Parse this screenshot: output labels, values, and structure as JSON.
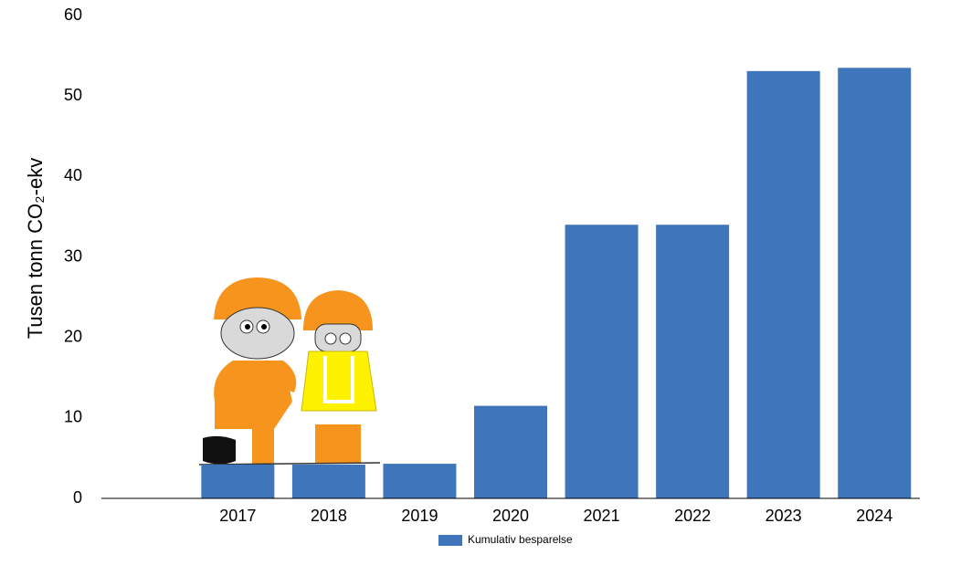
{
  "chart_data": {
    "type": "bar",
    "y_label": "Tusen tonn CO₂-ekv",
    "categories": [
      null,
      "2017",
      "2018",
      "2019",
      "2020",
      "2021",
      "2022",
      "2023",
      "2024"
    ],
    "series": [
      {
        "name": "Kumulativ besparelse",
        "color": "#3f75bb",
        "values": [
          null,
          4.2,
          4.2,
          4.3,
          11.5,
          34.0,
          34.0,
          53.1,
          53.5
        ]
      }
    ],
    "ylim": [
      0,
      60
    ],
    "yticks": [
      0,
      10,
      20,
      30,
      40,
      50,
      60
    ],
    "grid": false
  }
}
